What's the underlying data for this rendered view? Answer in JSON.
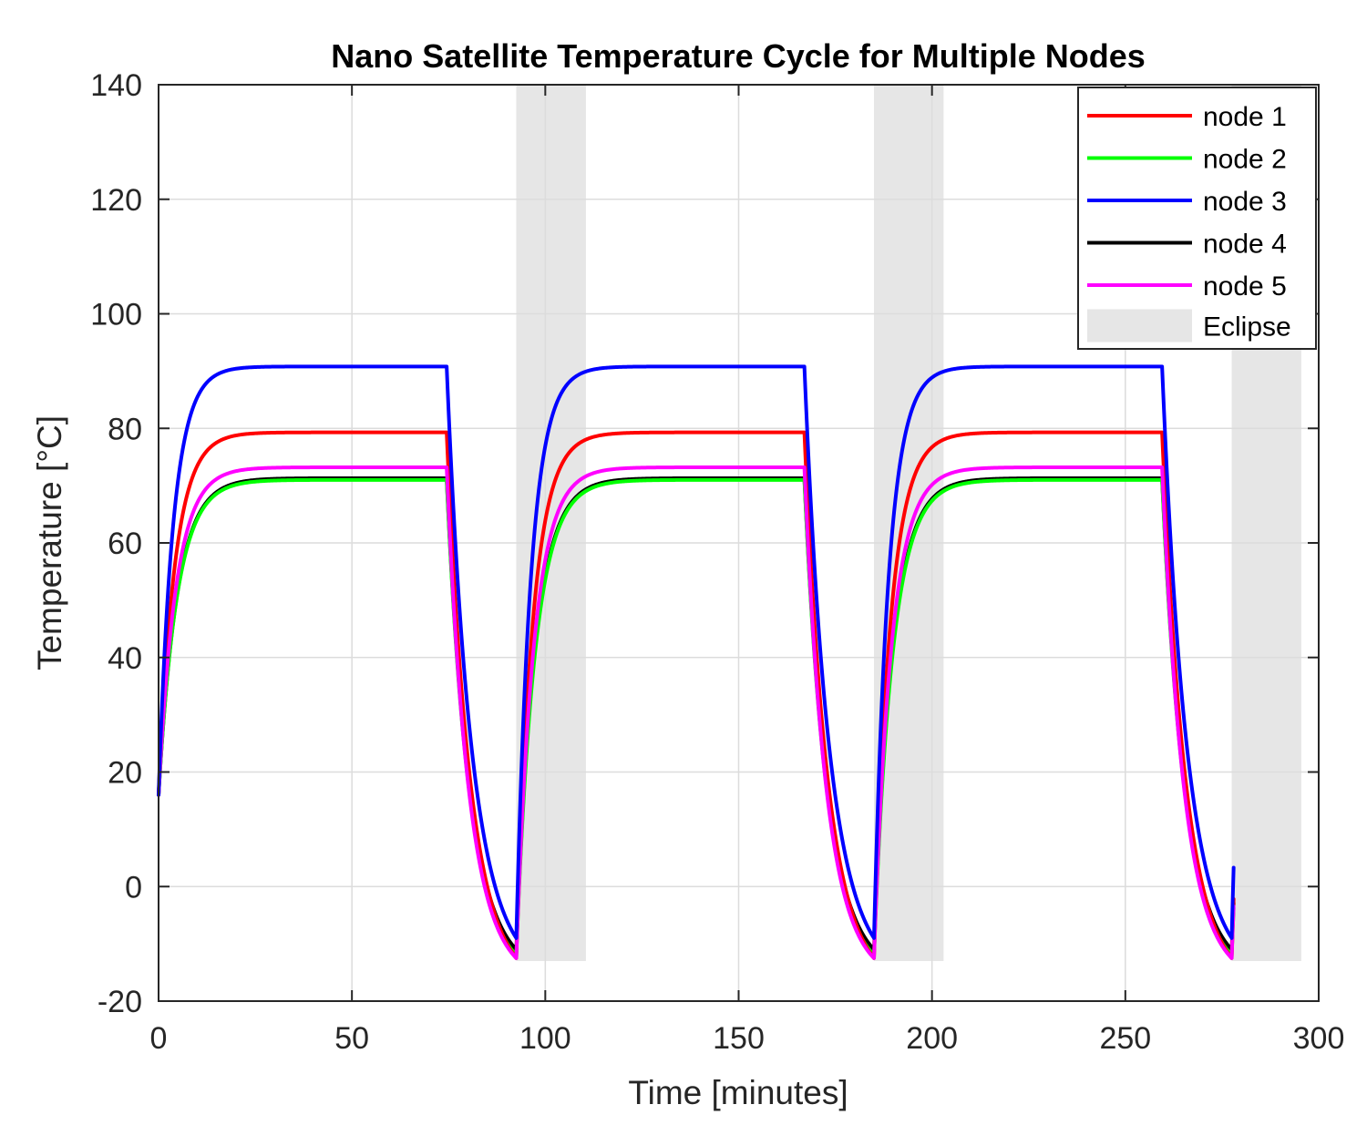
{
  "chart_data": {
    "type": "line",
    "title": "Nano Satellite Temperature Cycle for Multiple Nodes",
    "xlabel": "Time [minutes]",
    "ylabel": "Temperature [°C]",
    "xlim": [
      0,
      300
    ],
    "ylim": [
      -20,
      140
    ],
    "xticks": [
      0,
      50,
      100,
      150,
      200,
      250,
      300
    ],
    "yticks": [
      -20,
      0,
      20,
      40,
      60,
      80,
      100,
      120,
      140
    ],
    "grid": true,
    "legend_position": "top-right",
    "cycle": {
      "period": 92.5,
      "sunlit_duration": 74.5,
      "eclipse_duration": 18,
      "start_temperature": 16,
      "end_time": 278
    },
    "eclipse": {
      "name": "Eclipse",
      "color": "#e6e6e6",
      "intervals": [
        [
          92.5,
          110.5
        ],
        [
          185,
          203
        ],
        [
          277.5,
          295.5
        ]
      ],
      "floor": -13
    },
    "series": [
      {
        "name": "node 1",
        "color": "#ff0000",
        "steady_state": 79.3,
        "eclipse_min": -12.5,
        "heat_tau": 4.2,
        "cool_tau": 6.2
      },
      {
        "name": "node 2",
        "color": "#00ff00",
        "steady_state": 71.0,
        "eclipse_min": -12.0,
        "heat_tau": 4.8,
        "cool_tau": 6.0
      },
      {
        "name": "node 3",
        "color": "#0000ff",
        "steady_state": 90.8,
        "eclipse_min": -9.0,
        "heat_tau": 3.8,
        "cool_tau": 6.6
      },
      {
        "name": "node 4",
        "color": "#000000",
        "steady_state": 71.3,
        "eclipse_min": -11.0,
        "heat_tau": 4.8,
        "cool_tau": 6.0
      },
      {
        "name": "node 5",
        "color": "#ff00ff",
        "steady_state": 73.2,
        "eclipse_min": -12.5,
        "heat_tau": 4.5,
        "cool_tau": 5.8
      }
    ]
  }
}
